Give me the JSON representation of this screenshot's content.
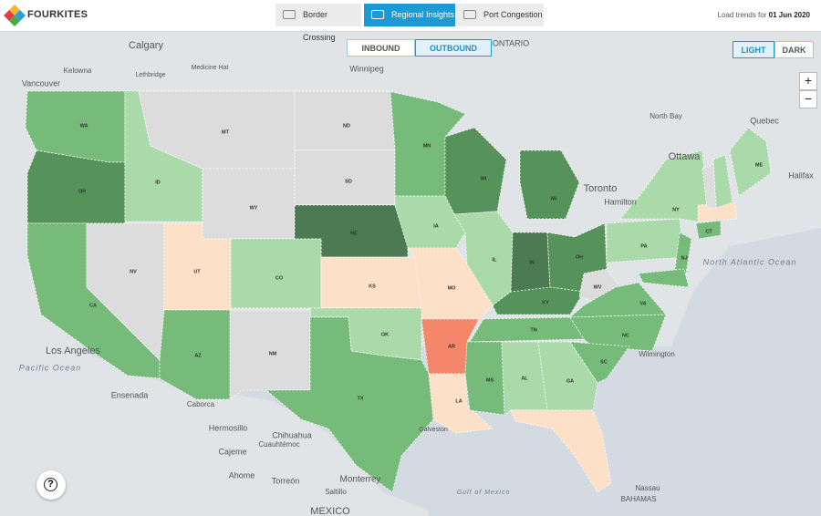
{
  "header": {
    "brand": "FOURKITES",
    "tabs": [
      "Border Crossing",
      "Regional Insights",
      "Port Congestion"
    ],
    "active_tab": 1,
    "trend_prefix": "Load trends for",
    "trend_date": "01 Jun 2020"
  },
  "direction": {
    "options": [
      "INBOUND",
      "OUTBOUND"
    ],
    "active": 1
  },
  "theme": {
    "options": [
      "LIGHT",
      "DARK"
    ],
    "active": 0
  },
  "zoom": {
    "in": "+",
    "out": "−"
  },
  "help": "?",
  "map": {
    "states": [
      {
        "label": "WA",
        "color": "#77bb7b"
      },
      {
        "label": "OR",
        "color": "#55935a"
      },
      {
        "label": "ID",
        "color": "#aad9aa"
      },
      {
        "label": "MT",
        "color": "#dcdcdc"
      },
      {
        "label": "ND",
        "color": "#dcdcdc"
      },
      {
        "label": "SD",
        "color": "#dcdcdc"
      },
      {
        "label": "WY",
        "color": "#dcdcdc"
      },
      {
        "label": "NE",
        "color": "#4c7a52"
      },
      {
        "label": "MN",
        "color": "#77bb7b"
      },
      {
        "label": "WI",
        "color": "#55935a"
      },
      {
        "label": "MI",
        "color": "#55935a"
      },
      {
        "label": "IA",
        "color": "#aad9aa"
      },
      {
        "label": "IL",
        "color": "#aad9aa"
      },
      {
        "label": "IN",
        "color": "#4c7a52"
      },
      {
        "label": "OH",
        "color": "#55935a"
      },
      {
        "label": "CA",
        "color": "#77bb7b"
      },
      {
        "label": "NV",
        "color": "#dcdcdc"
      },
      {
        "label": "UT",
        "color": "#fde0c8"
      },
      {
        "label": "CO",
        "color": "#aad9aa"
      },
      {
        "label": "KS",
        "color": "#fde0c8"
      },
      {
        "label": "MO",
        "color": "#fde0c8"
      },
      {
        "label": "KY",
        "color": "#55935a"
      },
      {
        "label": "WV",
        "color": "#dcdcdc"
      },
      {
        "label": "VA",
        "color": "#77bb7b"
      },
      {
        "label": "TN",
        "color": "#77bb7b"
      },
      {
        "label": "NC",
        "color": "#77bb7b"
      },
      {
        "label": "AR",
        "color": "#f4866a"
      },
      {
        "label": "OK",
        "color": "#aad9aa"
      },
      {
        "label": "AZ",
        "color": "#77bb7b"
      },
      {
        "label": "NM",
        "color": "#dcdcdc"
      },
      {
        "label": "TX",
        "color": "#77bb7b"
      },
      {
        "label": "LA",
        "color": "#fde0c8"
      },
      {
        "label": "MS",
        "color": "#77bb7b"
      },
      {
        "label": "AL",
        "color": "#aad9aa"
      },
      {
        "label": "GA",
        "color": "#aad9aa"
      },
      {
        "label": "SC",
        "color": "#77bb7b"
      },
      {
        "label": "PA",
        "color": "#aad9aa"
      },
      {
        "label": "NY",
        "color": "#aad9aa"
      },
      {
        "label": "NJ",
        "color": "#77bb7b"
      },
      {
        "label": "CT",
        "color": "#77bb7b"
      },
      {
        "label": "ME",
        "color": "#aad9aa"
      }
    ],
    "basemap_labels": [
      "Calgary",
      "Kelowna",
      "Vancouver",
      "Lethbridge",
      "Medicine Hat",
      "Winnipeg",
      "ONTARIO",
      "North Bay",
      "Ottawa",
      "Toronto",
      "Hamilton",
      "Quebec",
      "Halifax",
      "Los Angeles",
      "Pacific Ocean",
      "North Atlantic Ocean",
      "Gulf of Mexico",
      "Ensenada",
      "Caborca",
      "Hermosillo",
      "Chihuahua",
      "Cuauhtémoc",
      "Cajeme",
      "Ahome",
      "Torreón",
      "Saltillo",
      "Monterrey",
      "MEXICO",
      "Galveston",
      "Wilmington",
      "Nassau",
      "BAHAMAS"
    ]
  }
}
